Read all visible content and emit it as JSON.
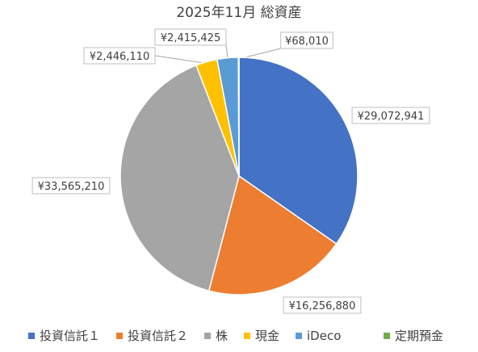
{
  "chart_data": {
    "type": "pie",
    "title": "2025年11月 総資産",
    "categories": [
      "投資信託１",
      "投資信託２",
      "株",
      "現金",
      "iDeco",
      "定期預金"
    ],
    "values": [
      29072941,
      16256880,
      33565210,
      2446110,
      2415425,
      68010
    ],
    "data_labels": [
      "¥29,072,941",
      "¥16,256,880",
      "¥33,565,210",
      "¥2,446,110",
      "¥2,415,425",
      "¥68,010"
    ],
    "colors": [
      "#4472C4",
      "#ED7D31",
      "#A5A5A5",
      "#FFC000",
      "#5B9BD5",
      "#70AD47"
    ],
    "start_angle": "12 o'clock",
    "direction": "clockwise",
    "legend": "bottom"
  }
}
